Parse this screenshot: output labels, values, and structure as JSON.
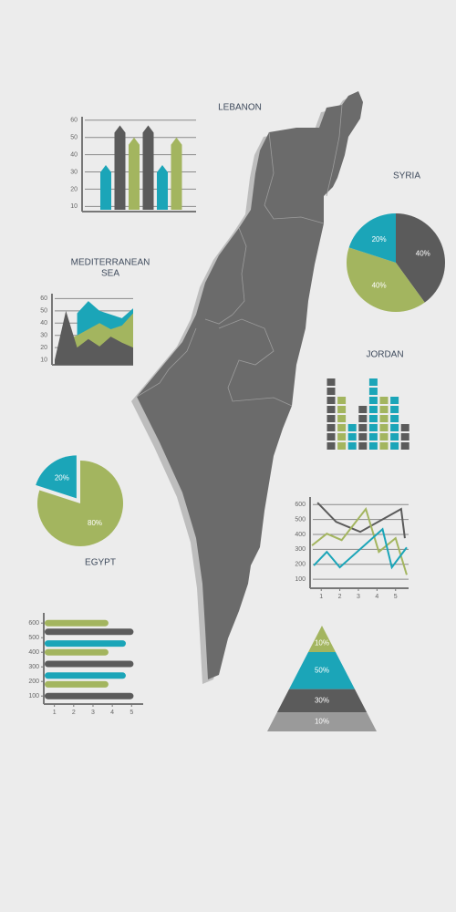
{
  "labels": {
    "lebanon": "LEBANON",
    "syria": "SYRIA",
    "mediterranean": [
      "MEDITERRANEAN",
      "SEA"
    ],
    "jordan": "JORDAN",
    "egypt": "EGYPT"
  },
  "chart_data": [
    {
      "type": "bar",
      "bar_shape": "arrow",
      "values": [
        34,
        57,
        50,
        57,
        34,
        50
      ],
      "colors": [
        "#1ba5b8",
        "#5b5b5b",
        "#a3b55f",
        "#5b5b5b",
        "#1ba5b8",
        "#a3b55f"
      ],
      "ylim": [
        7,
        62
      ],
      "yticks": [
        10,
        20,
        30,
        40,
        50,
        60
      ],
      "grid": true
    },
    {
      "type": "pie",
      "values": [
        40,
        40,
        20
      ],
      "value_labels": [
        "40%",
        "40%",
        "20%"
      ],
      "colors": [
        "#5b5b5b",
        "#a3b55f",
        "#1ba5b8"
      ]
    },
    {
      "type": "area",
      "categories": [
        null,
        null,
        null,
        null,
        null,
        null,
        null,
        null
      ],
      "series": [
        {
          "color": "#1ba5b8",
          "values": [
            null,
            null,
            48,
            58,
            50,
            47,
            44,
            52
          ]
        },
        {
          "color": "#a3b55f",
          "values": [
            null,
            26,
            30,
            35,
            40,
            35,
            38,
            48
          ]
        },
        {
          "color": "#5b5b5b",
          "values": [
            10,
            50,
            20,
            27,
            21,
            29,
            24,
            20
          ]
        }
      ],
      "ylim": [
        6,
        64
      ],
      "yticks": [
        10,
        20,
        30,
        40,
        50,
        60
      ],
      "grid": true
    },
    {
      "type": "bar",
      "bar_shape": "blocks",
      "values": [
        8,
        6,
        3,
        5,
        8,
        6,
        6,
        3
      ],
      "colors": [
        "#5b5b5b",
        "#a3b55f",
        "#1ba5b8",
        "#5b5b5b",
        "#1ba5b8",
        "#a3b55f",
        "#1ba5b8",
        "#5b5b5b"
      ]
    },
    {
      "type": "pie",
      "values": [
        80,
        20
      ],
      "value_labels": [
        "80%",
        "20%"
      ],
      "colors": [
        "#a3b55f",
        "#1ba5b8"
      ],
      "explode": [
        false,
        true
      ]
    },
    {
      "type": "line",
      "series": [
        {
          "color": "#5b5b5b",
          "x": [
            0.8,
            1.8,
            3.1,
            5.3,
            5.5
          ],
          "values": [
            612,
            484,
            417,
            570,
            375
          ]
        },
        {
          "color": "#a3b55f",
          "x": [
            0.5,
            1.3,
            2.1,
            3.4,
            4.1,
            5,
            5.6
          ],
          "values": [
            326,
            405,
            362,
            570,
            283,
            375,
            130
          ]
        },
        {
          "color": "#1ba5b8",
          "x": [
            0.6,
            1.3,
            2.0,
            4.3,
            4.8,
            5.6
          ],
          "values": [
            192,
            283,
            180,
            435,
            180,
            313
          ]
        }
      ],
      "xlim": [
        0.4,
        5.7
      ],
      "ylim": [
        40,
        650
      ],
      "xticks": [
        1,
        2,
        3,
        4,
        5
      ],
      "yticks": [
        100,
        200,
        300,
        400,
        500,
        600
      ],
      "grid": true
    },
    {
      "type": "bar",
      "bar_shape": "rounded",
      "orientation": "horizontal",
      "y": [
        600,
        540,
        460,
        400,
        320,
        240,
        180,
        100
      ],
      "values": [
        3.8,
        5.1,
        4.7,
        3.8,
        5.1,
        4.7,
        3.8,
        5.1
      ],
      "colors": [
        "#a3b55f",
        "#5b5b5b",
        "#1ba5b8",
        "#a3b55f",
        "#5b5b5b",
        "#1ba5b8",
        "#a3b55f",
        "#5b5b5b"
      ],
      "xlim": [
        0.45,
        5.6
      ],
      "ylim": [
        45,
        670
      ],
      "xticks": [
        1,
        2,
        3,
        4,
        5
      ],
      "yticks": [
        100,
        200,
        300,
        400,
        500,
        600
      ],
      "grid": false
    },
    {
      "type": "pyramid",
      "values": [
        10,
        50,
        30,
        10
      ],
      "value_labels": [
        "10%",
        "50%",
        "30%",
        "10%"
      ],
      "colors": [
        "#a3b55f",
        "#1ba5b8",
        "#5b5b5b",
        "#9a9a9a"
      ]
    }
  ]
}
